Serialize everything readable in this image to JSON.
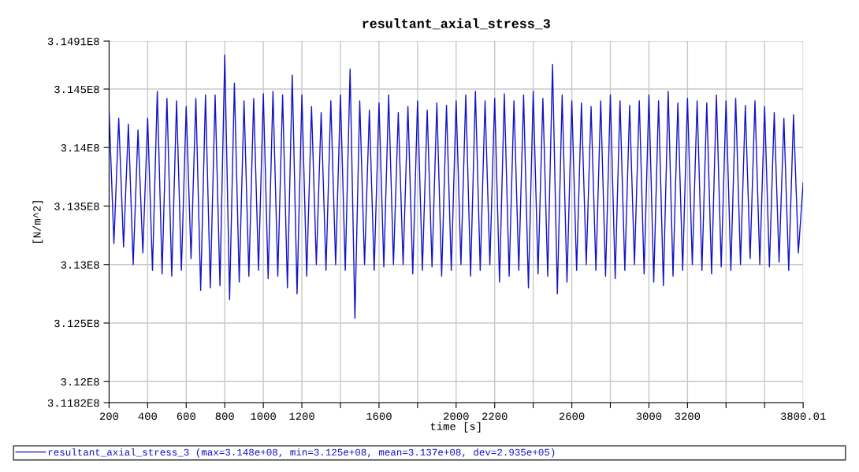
{
  "chart_data": {
    "type": "line",
    "title": "resultant_axial_stress_3",
    "xlabel": "time [s]",
    "ylabel": "[N/m^2]",
    "x": [
      200,
      225,
      250,
      275,
      300,
      325,
      350,
      375,
      400,
      425,
      450,
      475,
      500,
      525,
      550,
      575,
      600,
      625,
      650,
      675,
      700,
      725,
      750,
      775,
      800,
      825,
      850,
      875,
      900,
      925,
      950,
      975,
      1000,
      1025,
      1050,
      1075,
      1100,
      1125,
      1150,
      1175,
      1200,
      1225,
      1250,
      1275,
      1300,
      1325,
      1350,
      1375,
      1400,
      1425,
      1450,
      1475,
      1500,
      1525,
      1550,
      1575,
      1600,
      1625,
      1650,
      1675,
      1700,
      1725,
      1750,
      1775,
      1800,
      1825,
      1850,
      1875,
      1900,
      1925,
      1950,
      1975,
      2000,
      2025,
      2050,
      2075,
      2100,
      2125,
      2150,
      2175,
      2200,
      2225,
      2250,
      2275,
      2300,
      2325,
      2350,
      2375,
      2400,
      2425,
      2450,
      2475,
      2500,
      2525,
      2550,
      2575,
      2600,
      2625,
      2650,
      2675,
      2700,
      2725,
      2750,
      2775,
      2800,
      2825,
      2850,
      2875,
      2900,
      2925,
      2950,
      2975,
      3000,
      3025,
      3050,
      3075,
      3100,
      3125,
      3150,
      3175,
      3200,
      3225,
      3250,
      3275,
      3300,
      3325,
      3350,
      3375,
      3400,
      3425,
      3450,
      3475,
      3500,
      3525,
      3550,
      3575,
      3600,
      3625,
      3650,
      3675,
      3700,
      3725,
      3750,
      3775,
      3800.01
    ],
    "series": [
      {
        "name": "resultant_axial_stress_3 (max=3.148e+08, min=3.125e+08, mean=3.137e+08, dev=2.935e+05)",
        "color": "#1212c8",
        "values": [
          314320000.0,
          313180000.0,
          314250000.0,
          313150000.0,
          314200000.0,
          313000000.0,
          314150000.0,
          313100000.0,
          314250000.0,
          312950000.0,
          314480000.0,
          312920000.0,
          314420000.0,
          312900000.0,
          314400000.0,
          312950000.0,
          314350000.0,
          313050000.0,
          314420000.0,
          312780000.0,
          314450000.0,
          312800000.0,
          314450000.0,
          312820000.0,
          314790000.0,
          312700000.0,
          314550000.0,
          312850000.0,
          314400000.0,
          312900000.0,
          314420000.0,
          312950000.0,
          314460000.0,
          312880000.0,
          314480000.0,
          312900000.0,
          314450000.0,
          312800000.0,
          314620000.0,
          312750000.0,
          314450000.0,
          312900000.0,
          314350000.0,
          313000000.0,
          314300000.0,
          312950000.0,
          314400000.0,
          313000000.0,
          314450000.0,
          312950000.0,
          314670000.0,
          312540000.0,
          314400000.0,
          313000000.0,
          314320000.0,
          312950000.0,
          314380000.0,
          312980000.0,
          314450000.0,
          313000000.0,
          314300000.0,
          313000000.0,
          314350000.0,
          312920000.0,
          314400000.0,
          312950000.0,
          314320000.0,
          312980000.0,
          314380000.0,
          312900000.0,
          314360000.0,
          312950000.0,
          314400000.0,
          313000000.0,
          314450000.0,
          312900000.0,
          314480000.0,
          312950000.0,
          314400000.0,
          313000000.0,
          314420000.0,
          312850000.0,
          314460000.0,
          312900000.0,
          314400000.0,
          312950000.0,
          314450000.0,
          312800000.0,
          314480000.0,
          312920000.0,
          314420000.0,
          312900000.0,
          314710000.0,
          312750000.0,
          314450000.0,
          312850000.0,
          314400000.0,
          312950000.0,
          314380000.0,
          313000000.0,
          314350000.0,
          312950000.0,
          314400000.0,
          312900000.0,
          314450000.0,
          312880000.0,
          314400000.0,
          312950000.0,
          314360000.0,
          313000000.0,
          314400000.0,
          312920000.0,
          314450000.0,
          312850000.0,
          314400000.0,
          312820000.0,
          314480000.0,
          312900000.0,
          314380000.0,
          312950000.0,
          314420000.0,
          313000000.0,
          314400000.0,
          312950000.0,
          314380000.0,
          312920000.0,
          314450000.0,
          312980000.0,
          314400000.0,
          312950000.0,
          314420000.0,
          313000000.0,
          314360000.0,
          313050000.0,
          314400000.0,
          313000000.0,
          314350000.0,
          312980000.0,
          314300000.0,
          313020000.0,
          314250000.0,
          312950000.0,
          314280000.0,
          313100000.0,
          313700000.0
        ]
      }
    ],
    "xlim": [
      200,
      3800.01
    ],
    "xticks": [
      200,
      400,
      600,
      800,
      1000,
      1200,
      {
        "value": 1400,
        "label": null
      },
      1600,
      {
        "value": 1800,
        "label": null
      },
      2000,
      2200,
      {
        "value": 2400,
        "label": null
      },
      2600,
      {
        "value": 2800,
        "label": null
      },
      3000,
      3200,
      {
        "value": 3400,
        "label": null
      },
      {
        "value": 3600,
        "label": null
      },
      3800.01
    ],
    "ylim": [
      311820000.0,
      314910000.0
    ],
    "yticks": [
      {
        "value": 311820000.0,
        "label": "3.1182E8"
      },
      {
        "value": 312000000.0,
        "label": "3.12E8"
      },
      {
        "value": 312500000.0,
        "label": "3.125E8"
      },
      {
        "value": 313000000.0,
        "label": "3.13E8"
      },
      {
        "value": 313500000.0,
        "label": "3.135E8"
      },
      {
        "value": 314000000.0,
        "label": "3.14E8"
      },
      {
        "value": 314500000.0,
        "label": "3.145E8"
      },
      {
        "value": 314910000.0,
        "label": "3.1491E8"
      }
    ],
    "grid": true,
    "legend": "bottom",
    "marker": "none",
    "line_style": "solid"
  }
}
